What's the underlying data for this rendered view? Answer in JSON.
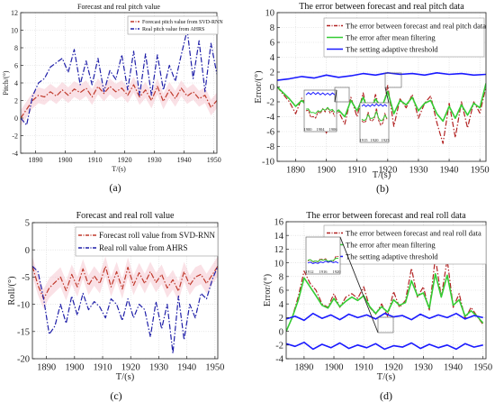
{
  "figure": {
    "panel_labels": [
      "(a)",
      "(b)",
      "(c)",
      "(d)"
    ]
  },
  "chart_data": [
    {
      "id": "a",
      "type": "line",
      "title": "Forecast and real pitch value",
      "xlabel": "T/(s)",
      "ylabel": "Pitch/(°)",
      "xlim": [
        1885,
        1951
      ],
      "ylim": [
        -4,
        12
      ],
      "xticks": [
        1890,
        1900,
        1910,
        1920,
        1930,
        1940,
        1950
      ],
      "yticks": [
        -4,
        -2,
        0,
        2,
        4,
        6,
        8,
        10,
        12
      ],
      "grid": true,
      "legend_position": "top-right",
      "series": [
        {
          "name": "Forecast pitch value from SVD-RNN",
          "color": "#c0392b",
          "dash": "dashdot",
          "x": [
            1885,
            1887,
            1889,
            1891,
            1893,
            1895,
            1897,
            1899,
            1901,
            1903,
            1905,
            1907,
            1909,
            1911,
            1913,
            1915,
            1917,
            1919,
            1921,
            1923,
            1925,
            1927,
            1929,
            1931,
            1933,
            1935,
            1937,
            1939,
            1941,
            1943,
            1945,
            1947,
            1949,
            1951
          ],
          "y": [
            0.0,
            1.0,
            2.0,
            2.6,
            2.4,
            3.0,
            2.5,
            3.2,
            2.6,
            3.3,
            2.9,
            3.4,
            2.4,
            3.6,
            2.8,
            3.6,
            3.0,
            3.4,
            2.6,
            3.8,
            2.4,
            3.2,
            2.0,
            3.6,
            1.9,
            3.2,
            2.2,
            3.4,
            2.5,
            3.0,
            2.2,
            2.6,
            1.2,
            2.0
          ]
        },
        {
          "name": "Real pitch value from AHRS",
          "color": "#1f1fa8",
          "dash": "dashdot",
          "x": [
            1885,
            1887,
            1889,
            1891,
            1893,
            1895,
            1897,
            1899,
            1901,
            1903,
            1905,
            1907,
            1909,
            1911,
            1913,
            1915,
            1917,
            1919,
            1921,
            1923,
            1925,
            1927,
            1929,
            1931,
            1933,
            1935,
            1937,
            1939,
            1941,
            1943,
            1945,
            1947,
            1949,
            1951
          ],
          "y": [
            0.0,
            -0.8,
            2.5,
            4.0,
            4.5,
            5.8,
            6.3,
            6.8,
            5.2,
            7.8,
            3.8,
            6.5,
            3.8,
            6.8,
            3.0,
            5.4,
            4.4,
            7.2,
            3.2,
            7.6,
            2.6,
            7.3,
            2.6,
            7.2,
            3.2,
            6.0,
            4.2,
            7.2,
            10.0,
            4.5,
            8.8,
            3.0,
            8.5,
            5.0
          ]
        }
      ]
    },
    {
      "id": "b",
      "type": "line",
      "title": "The error between forecast and real pitch data",
      "xlabel": "T/(s)",
      "ylabel": "Error/(°)",
      "xlim": [
        1884,
        1952
      ],
      "ylim": [
        -10,
        10
      ],
      "xticks": [
        1890,
        1900,
        1910,
        1920,
        1930,
        1940,
        1950
      ],
      "yticks": [
        -10,
        -8,
        -6,
        -4,
        -2,
        0,
        2,
        4,
        6,
        8,
        10
      ],
      "grid": true,
      "legend_position": "top-right",
      "insets": [
        {
          "xticks": [
            "1900",
            "1904",
            "1906"
          ],
          "x_range": [
            1898,
            1906
          ]
        },
        {
          "xticks": [
            "1915",
            "1920",
            "1925"
          ],
          "x_range": [
            1913,
            1925
          ]
        }
      ],
      "series": [
        {
          "name": "The error between forecast and real pitch data",
          "color": "#b22222",
          "dash": "dashdot",
          "x": [
            1884,
            1886,
            1888,
            1890,
            1892,
            1894,
            1896,
            1898,
            1900,
            1902,
            1904,
            1906,
            1908,
            1910,
            1912,
            1914,
            1916,
            1918,
            1920,
            1922,
            1924,
            1926,
            1928,
            1930,
            1932,
            1934,
            1936,
            1938,
            1940,
            1942,
            1944,
            1946,
            1948,
            1950,
            1952
          ],
          "y": [
            0.0,
            -1.0,
            -2.0,
            -3.6,
            -1.5,
            -2.8,
            -4.2,
            -3.2,
            -6.2,
            -4.0,
            -3.3,
            -5.0,
            -1.4,
            -4.0,
            -0.8,
            -4.5,
            -1.0,
            -3.9,
            0.2,
            -5.3,
            -1.6,
            -2.8,
            -1.0,
            -4.2,
            -2.2,
            -1.2,
            -4.8,
            -7.6,
            -2.2,
            -6.8,
            -2.0,
            -5.5,
            -2.0,
            -3.5,
            0.0
          ]
        },
        {
          "name": "The error after mean filtering",
          "color": "#33cc33",
          "dash": "solid",
          "x": [
            1884,
            1886,
            1888,
            1890,
            1892,
            1894,
            1896,
            1898,
            1900,
            1902,
            1904,
            1906,
            1908,
            1910,
            1912,
            1914,
            1916,
            1918,
            1920,
            1922,
            1924,
            1926,
            1928,
            1930,
            1932,
            1934,
            1936,
            1938,
            1940,
            1942,
            1944,
            1946,
            1948,
            1950,
            1952
          ],
          "y": [
            0.0,
            -0.8,
            -1.6,
            -2.6,
            -1.8,
            -2.6,
            -3.4,
            -3.0,
            -4.6,
            -3.8,
            -3.1,
            -4.0,
            -1.8,
            -3.2,
            -1.4,
            -3.5,
            -1.6,
            -2.8,
            -0.6,
            -3.6,
            -1.8,
            -2.4,
            -1.4,
            -3.2,
            -2.2,
            -1.8,
            -3.6,
            -4.6,
            -2.6,
            -4.2,
            -2.4,
            -3.8,
            -2.2,
            -2.8,
            0.5
          ]
        },
        {
          "name": "The setting adaptive threshold",
          "color": "#1a1aff",
          "dash": "solid",
          "x": [
            1884,
            1888,
            1892,
            1896,
            1900,
            1904,
            1908,
            1912,
            1916,
            1920,
            1924,
            1928,
            1932,
            1936,
            1940,
            1944,
            1948,
            1952
          ],
          "y": [
            0.9,
            1.1,
            1.4,
            1.2,
            1.6,
            1.3,
            1.5,
            1.8,
            1.6,
            1.9,
            1.7,
            1.8,
            1.6,
            1.9,
            1.7,
            1.8,
            1.6,
            1.7
          ]
        }
      ]
    },
    {
      "id": "c",
      "type": "line",
      "title": "Forecast and real roll value",
      "xlabel": "T/(s)",
      "ylabel": "Roll/(°)",
      "xlim": [
        1885,
        1951
      ],
      "ylim": [
        -20,
        5
      ],
      "xticks": [
        1890,
        1900,
        1910,
        1920,
        1930,
        1940,
        1950
      ],
      "yticks": [
        -20,
        -15,
        -10,
        -5,
        0,
        5
      ],
      "grid": true,
      "legend_position": "top-right",
      "series": [
        {
          "name": "Forecast roll value from SVD-RNN",
          "color": "#c0392b",
          "dash": "dashdot",
          "x": [
            1885,
            1887,
            1889,
            1891,
            1893,
            1895,
            1897,
            1899,
            1901,
            1903,
            1905,
            1907,
            1909,
            1911,
            1913,
            1915,
            1917,
            1919,
            1921,
            1923,
            1925,
            1927,
            1929,
            1931,
            1933,
            1935,
            1937,
            1939,
            1941,
            1943,
            1945,
            1947,
            1949,
            1951
          ],
          "y": [
            -3.0,
            -6.5,
            -9.0,
            -7.0,
            -6.0,
            -5.0,
            -7.5,
            -4.5,
            -6.8,
            -3.5,
            -6.5,
            -4.8,
            -6.2,
            -3.0,
            -6.8,
            -4.0,
            -7.2,
            -3.2,
            -6.5,
            -4.2,
            -6.2,
            -4.0,
            -6.0,
            -4.5,
            -7.0,
            -5.5,
            -7.6,
            -4.0,
            -6.5,
            -5.0,
            -4.5,
            -6.2,
            -4.6,
            -3.0
          ]
        },
        {
          "name": "Real roll value from AHRS",
          "color": "#1f1fa8",
          "dash": "dashdot",
          "x": [
            1885,
            1887,
            1889,
            1891,
            1893,
            1895,
            1897,
            1899,
            1901,
            1903,
            1905,
            1907,
            1909,
            1911,
            1913,
            1915,
            1917,
            1919,
            1921,
            1923,
            1925,
            1927,
            1929,
            1931,
            1933,
            1935,
            1937,
            1939,
            1941,
            1943,
            1945,
            1947,
            1949,
            1951
          ],
          "y": [
            -3.0,
            -4.0,
            -9.0,
            -15.5,
            -14.0,
            -10.0,
            -13.5,
            -8.5,
            -12.0,
            -8.0,
            -11.0,
            -9.5,
            -10.5,
            -12.5,
            -9.0,
            -10.0,
            -13.0,
            -9.0,
            -12.5,
            -10.0,
            -11.0,
            -16.0,
            -9.5,
            -14.5,
            -10.0,
            -19.0,
            -8.5,
            -16.5,
            -10.0,
            -12.5,
            -8.0,
            -9.0,
            -5.5,
            -3.0
          ]
        }
      ]
    },
    {
      "id": "d",
      "type": "line",
      "title": "The error between forecast and real roll data",
      "xlabel": "T/(s)",
      "ylabel": "Error/(°)",
      "xlim": [
        1884,
        1951
      ],
      "ylim": [
        -4,
        16
      ],
      "xticks": [
        1890,
        1900,
        1910,
        1920,
        1930,
        1940,
        1950
      ],
      "yticks": [
        -4,
        -2,
        0,
        2,
        4,
        6,
        8,
        10,
        12,
        14,
        16
      ],
      "grid": true,
      "legend_position": "top-right",
      "insets": [
        {
          "xticks": [
            "1912",
            "1916",
            "1920"
          ],
          "x_range": [
            1912,
            1920
          ]
        }
      ],
      "series": [
        {
          "name": "The error between forecast and real roll data",
          "color": "#b22222",
          "dash": "dashdot",
          "x": [
            1884,
            1886,
            1888,
            1890,
            1892,
            1894,
            1896,
            1898,
            1900,
            1902,
            1904,
            1906,
            1908,
            1910,
            1912,
            1914,
            1916,
            1918,
            1920,
            1922,
            1924,
            1926,
            1928,
            1930,
            1932,
            1934,
            1936,
            1938,
            1940,
            1942,
            1944,
            1946,
            1948,
            1950
          ],
          "y": [
            0.0,
            2.0,
            5.0,
            8.8,
            7.0,
            6.0,
            4.0,
            3.5,
            5.5,
            3.5,
            5.0,
            5.5,
            4.8,
            6.5,
            3.5,
            2.5,
            4.0,
            2.2,
            5.8,
            3.5,
            4.5,
            9.2,
            5.0,
            6.5,
            3.0,
            10.8,
            5.0,
            10.5,
            3.5,
            5.5,
            1.8,
            3.5,
            2.2,
            1.0
          ]
        },
        {
          "name": "The error after mean filtering",
          "color": "#33cc33",
          "dash": "solid",
          "x": [
            1884,
            1886,
            1888,
            1890,
            1892,
            1894,
            1896,
            1898,
            1900,
            1902,
            1904,
            1906,
            1908,
            1910,
            1912,
            1914,
            1916,
            1918,
            1920,
            1922,
            1924,
            1926,
            1928,
            1930,
            1932,
            1934,
            1936,
            1938,
            1940,
            1942,
            1944,
            1946,
            1948,
            1950
          ],
          "y": [
            0.0,
            2.0,
            4.5,
            7.8,
            6.5,
            5.2,
            3.8,
            3.4,
            4.8,
            3.6,
            4.4,
            5.0,
            4.5,
            5.2,
            3.6,
            2.6,
            3.6,
            2.8,
            4.6,
            3.8,
            4.2,
            7.4,
            5.2,
            5.6,
            3.4,
            8.4,
            5.0,
            8.2,
            3.8,
            4.6,
            2.2,
            3.0,
            2.2,
            1.2
          ]
        },
        {
          "name": "The setting adaptive threshold",
          "color": "#1a1aff",
          "dash": "solid",
          "x": [
            1884,
            1887,
            1890,
            1893,
            1896,
            1899,
            1902,
            1905,
            1908,
            1911,
            1914,
            1917,
            1920,
            1923,
            1926,
            1929,
            1932,
            1935,
            1938,
            1941,
            1944,
            1947,
            1950
          ],
          "y": [
            1.8,
            2.2,
            1.6,
            2.6,
            1.9,
            2.4,
            1.7,
            2.5,
            2.0,
            2.4,
            1.8,
            2.6,
            2.1,
            2.3,
            1.7,
            2.5,
            1.9,
            2.4,
            2.0,
            2.6,
            1.8,
            2.3,
            2.0
          ]
        },
        {
          "name": "",
          "color": "#1a1aff",
          "dash": "solid",
          "x": [
            1884,
            1887,
            1890,
            1893,
            1896,
            1899,
            1902,
            1905,
            1908,
            1911,
            1914,
            1917,
            1920,
            1923,
            1926,
            1929,
            1932,
            1935,
            1938,
            1941,
            1944,
            1947,
            1950
          ],
          "y": [
            -1.8,
            -2.2,
            -1.6,
            -2.6,
            -1.9,
            -2.4,
            -1.7,
            -2.5,
            -2.0,
            -2.4,
            -1.8,
            -2.6,
            -2.1,
            -2.3,
            -1.7,
            -2.5,
            -1.9,
            -2.4,
            -2.0,
            -2.6,
            -1.8,
            -2.3,
            -2.0
          ]
        }
      ]
    }
  ]
}
